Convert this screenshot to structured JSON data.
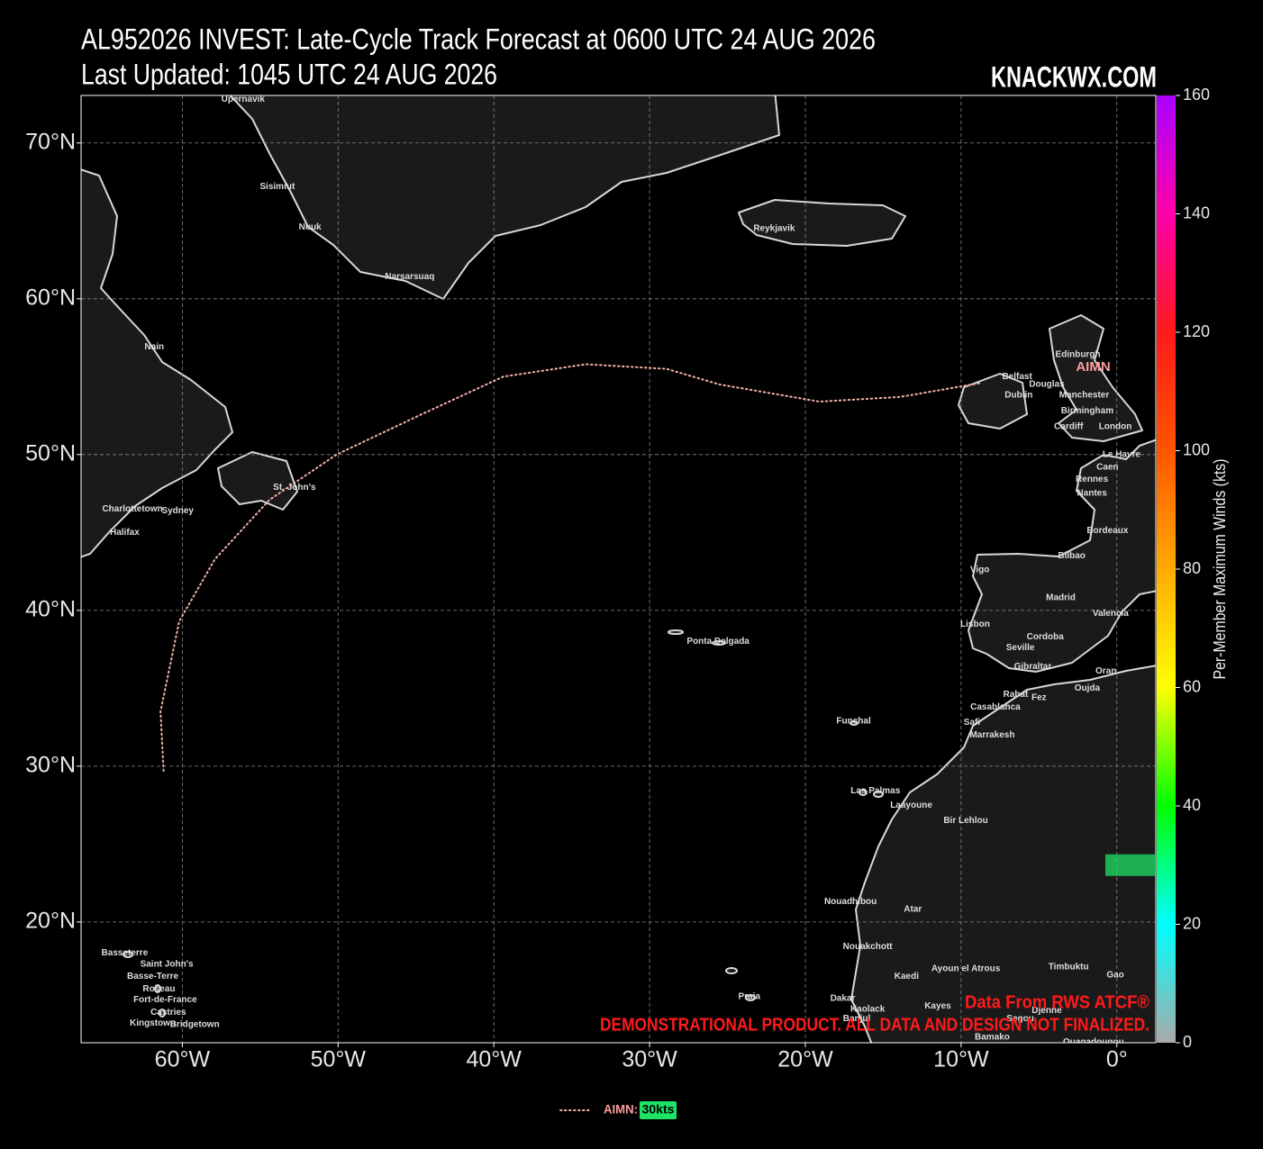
{
  "chart_data": {
    "type": "line",
    "title": "AL952026 INVEST: Late-Cycle Track Forecast at 0600 UTC 24 AUG 2026",
    "subtitle": "Last Updated: 1045 UTC 24 AUG 2026",
    "brand": "KNACKWX.COM",
    "source": "Data From RWS ATCF®",
    "disclaimer": "DEMONSTRATIONAL PRODUCT. ALL DATA AND DESIGN NOT FINALIZED.",
    "xlim": [
      -66.5,
      2.5
    ],
    "ylim": [
      12.25,
      73.05
    ],
    "xticks": [
      {
        "value": -60,
        "label": "60°W"
      },
      {
        "value": -50,
        "label": "50°W"
      },
      {
        "value": -40,
        "label": "40°W"
      },
      {
        "value": -30,
        "label": "30°W"
      },
      {
        "value": -20,
        "label": "20°W"
      },
      {
        "value": -10,
        "label": "10°W"
      },
      {
        "value": 0,
        "label": "0°"
      }
    ],
    "yticks": [
      {
        "value": 20,
        "label": "20°N"
      },
      {
        "value": 30,
        "label": "30°N"
      },
      {
        "value": 40,
        "label": "40°N"
      },
      {
        "value": 50,
        "label": "50°N"
      },
      {
        "value": 60,
        "label": "60°N"
      },
      {
        "value": 70,
        "label": "70°N"
      }
    ],
    "grid": true,
    "series": [
      {
        "name": "AIMN",
        "legend_label": "AIMN:",
        "color": "#f2b3a6",
        "label_color": "#ff9c9c",
        "max_wind": 30,
        "max_wind_label": "30kts",
        "wind_color": "#1de366",
        "x": [
          -61.2,
          -61.4,
          -60.2,
          -57.9,
          -54.4,
          -50.1,
          -44.6,
          -39.4,
          -34.1,
          -28.9,
          -25.5,
          -19.1,
          -13.9,
          -8.7
        ],
        "values": [
          29.7,
          33.5,
          39.3,
          43.3,
          47.1,
          50.0,
          52.6,
          55.0,
          55.8,
          55.5,
          54.5,
          53.4,
          53.7,
          54.6
        ]
      }
    ],
    "colorbar": {
      "label": "Per-Member Maximum Winds (kts)",
      "lim": [
        0,
        160
      ],
      "ticks": [
        0,
        20,
        40,
        60,
        80,
        100,
        120,
        140,
        160
      ],
      "colors": [
        "#aaaaaa",
        "#00ffff",
        "#00ff00",
        "#ffff00",
        "#ffaa00",
        "#ff5500",
        "#ff1a1a",
        "#ff00aa",
        "#aa00ff"
      ]
    },
    "cities": [
      {
        "name": "Upernavik",
        "lon": -56.1,
        "lat": 72.8
      },
      {
        "name": "Sisimiut",
        "lon": -53.9,
        "lat": 67.2
      },
      {
        "name": "Nuuk",
        "lon": -51.8,
        "lat": 64.6
      },
      {
        "name": "Narsarsuaq",
        "lon": -45.4,
        "lat": 61.4
      },
      {
        "name": "Reykjavik",
        "lon": -22.0,
        "lat": 64.5
      },
      {
        "name": "Nain",
        "lon": -61.8,
        "lat": 56.9
      },
      {
        "name": "St. John's",
        "lon": -52.8,
        "lat": 47.9
      },
      {
        "name": "Charlottetown",
        "lon": -63.2,
        "lat": 46.5
      },
      {
        "name": "Sydney",
        "lon": -60.3,
        "lat": 46.4
      },
      {
        "name": "Halifax",
        "lon": -63.7,
        "lat": 45.0
      },
      {
        "name": "Ponta Delgada",
        "lon": -25.6,
        "lat": 38.0
      },
      {
        "name": "Funchal",
        "lon": -16.9,
        "lat": 32.9
      },
      {
        "name": "Las Palmas",
        "lon": -15.5,
        "lat": 28.4
      },
      {
        "name": "Laayoune",
        "lon": -13.2,
        "lat": 27.5
      },
      {
        "name": "Bir Lehlou",
        "lon": -9.7,
        "lat": 26.5
      },
      {
        "name": "Nouadhibou",
        "lon": -17.1,
        "lat": 21.3
      },
      {
        "name": "Atar",
        "lon": -13.1,
        "lat": 20.8
      },
      {
        "name": "Nouakchott",
        "lon": -16.0,
        "lat": 18.4
      },
      {
        "name": "Kaedi",
        "lon": -13.5,
        "lat": 16.5
      },
      {
        "name": "Ayoun el Atrous",
        "lon": -9.7,
        "lat": 17.0
      },
      {
        "name": "Timbuktu",
        "lon": -3.1,
        "lat": 17.1
      },
      {
        "name": "Gao",
        "lon": -0.1,
        "lat": 16.6
      },
      {
        "name": "Dakar",
        "lon": -17.6,
        "lat": 15.1
      },
      {
        "name": "Kaolack",
        "lon": -16.0,
        "lat": 14.4
      },
      {
        "name": "Banjul",
        "lon": -16.7,
        "lat": 13.8
      },
      {
        "name": "Kayes",
        "lon": -11.5,
        "lat": 14.6
      },
      {
        "name": "Segou",
        "lon": -6.2,
        "lat": 13.8
      },
      {
        "name": "Djenne",
        "lon": -4.5,
        "lat": 14.3
      },
      {
        "name": "Bamako",
        "lon": -8.0,
        "lat": 12.6
      },
      {
        "name": "Ouagadougou",
        "lon": -1.5,
        "lat": 12.3
      },
      {
        "name": "Praia",
        "lon": -23.6,
        "lat": 15.2
      },
      {
        "name": "Basseterre",
        "lon": -63.7,
        "lat": 18.0
      },
      {
        "name": "Saint John's",
        "lon": -61.0,
        "lat": 17.3
      },
      {
        "name": "Basse-Terre",
        "lon": -61.9,
        "lat": 16.5
      },
      {
        "name": "Roseau",
        "lon": -61.5,
        "lat": 15.7
      },
      {
        "name": "Fort-de-France",
        "lon": -61.1,
        "lat": 15.0
      },
      {
        "name": "Castries",
        "lon": -60.9,
        "lat": 14.2
      },
      {
        "name": "Kingstown",
        "lon": -61.9,
        "lat": 13.5
      },
      {
        "name": "Bridgetown",
        "lon": -59.2,
        "lat": 13.4
      },
      {
        "name": "Belfast",
        "lon": -6.4,
        "lat": 55.0
      },
      {
        "name": "Dublin",
        "lon": -6.3,
        "lat": 53.8
      },
      {
        "name": "Douglas",
        "lon": -4.5,
        "lat": 54.5
      },
      {
        "name": "Edinburgh",
        "lon": -2.5,
        "lat": 56.4
      },
      {
        "name": "Manchester",
        "lon": -2.1,
        "lat": 53.8
      },
      {
        "name": "Birmingham",
        "lon": -1.9,
        "lat": 52.8
      },
      {
        "name": "Cardiff",
        "lon": -3.1,
        "lat": 51.8
      },
      {
        "name": "London",
        "lon": -0.1,
        "lat": 51.8
      },
      {
        "name": "Le Havre",
        "lon": 0.3,
        "lat": 50.0
      },
      {
        "name": "Caen",
        "lon": -0.6,
        "lat": 49.2
      },
      {
        "name": "Rennes",
        "lon": -1.6,
        "lat": 48.4
      },
      {
        "name": "Nantes",
        "lon": -1.6,
        "lat": 47.5
      },
      {
        "name": "Bordeaux",
        "lon": -0.6,
        "lat": 45.1
      },
      {
        "name": "Bilbao",
        "lon": -2.9,
        "lat": 43.5
      },
      {
        "name": "Vigo",
        "lon": -8.8,
        "lat": 42.6
      },
      {
        "name": "Madrid",
        "lon": -3.6,
        "lat": 40.8
      },
      {
        "name": "Valencia",
        "lon": -0.4,
        "lat": 39.8
      },
      {
        "name": "Lisbon",
        "lon": -9.1,
        "lat": 39.1
      },
      {
        "name": "Cordoba",
        "lon": -4.6,
        "lat": 38.3
      },
      {
        "name": "Seville",
        "lon": -6.2,
        "lat": 37.6
      },
      {
        "name": "Gibraltar",
        "lon": -5.4,
        "lat": 36.4
      },
      {
        "name": "Oran",
        "lon": -0.7,
        "lat": 36.1
      },
      {
        "name": "Oujda",
        "lon": -1.9,
        "lat": 35.0
      },
      {
        "name": "Rabat",
        "lon": -6.5,
        "lat": 34.6
      },
      {
        "name": "Fez",
        "lon": -5.0,
        "lat": 34.4
      },
      {
        "name": "Casablanca",
        "lon": -7.8,
        "lat": 33.8
      },
      {
        "name": "Safi",
        "lon": -9.3,
        "lat": 32.8
      },
      {
        "name": "Marrakesh",
        "lon": -8.0,
        "lat": 32.0
      }
    ]
  }
}
